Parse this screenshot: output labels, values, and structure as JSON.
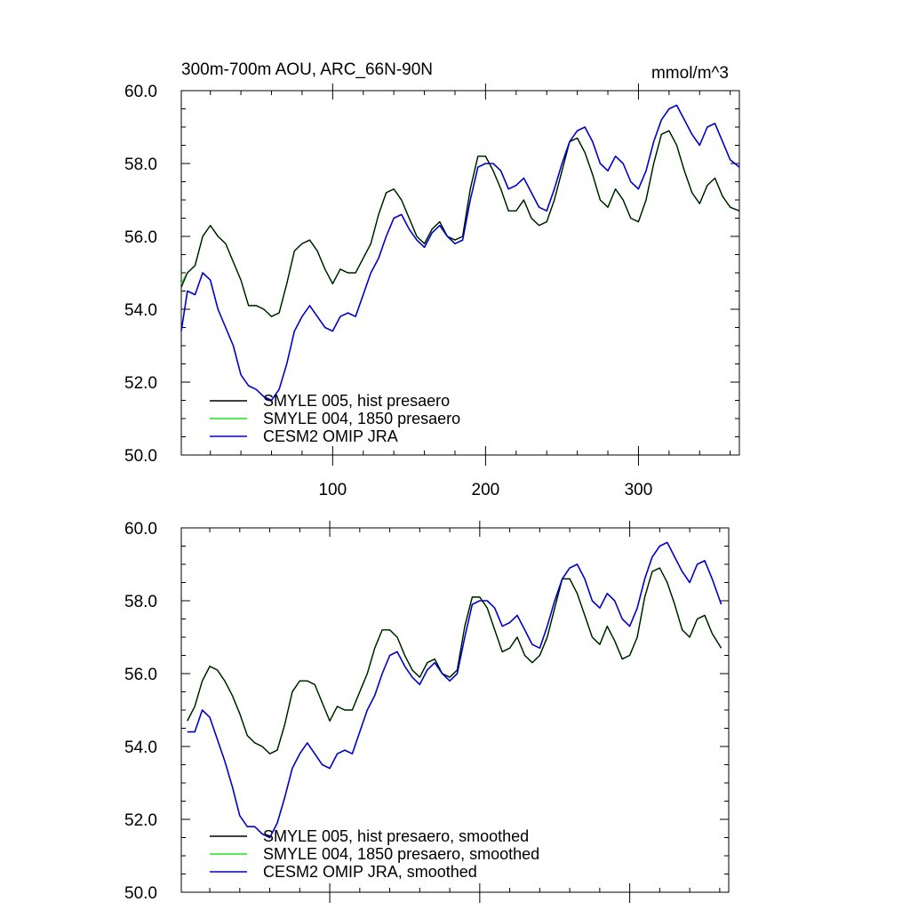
{
  "header": {
    "title": "300m-700m AOU, ARC_66N-90N",
    "units": "mmol/m^3"
  },
  "colors": {
    "smyle005": "#000000",
    "smyle004": "#22dd22",
    "omip": "#0000cc"
  },
  "chart_data": [
    {
      "type": "line",
      "xlim": [
        1,
        366
      ],
      "ylim": [
        50.0,
        60.0
      ],
      "x_ticks": [
        100,
        200,
        300
      ],
      "x_tick_labels": [
        "100",
        "200",
        "300"
      ],
      "y_ticks": [
        50,
        52,
        54,
        56,
        58,
        60
      ],
      "y_tick_labels": [
        "50.0",
        "52.0",
        "54.0",
        "56.0",
        "58.0",
        "60.0"
      ],
      "legend_placement": "bottom-left",
      "series": [
        {
          "name": "SMYLE 005, hist presaero",
          "color": "#000000",
          "x": [
            1,
            5,
            10,
            15,
            20,
            25,
            30,
            35,
            40,
            45,
            50,
            55,
            60,
            65,
            70,
            75,
            80,
            85,
            90,
            95,
            100,
            105,
            110,
            115,
            120,
            125,
            130,
            135,
            140,
            145,
            150,
            155,
            160,
            165,
            170,
            175,
            180,
            185,
            190,
            195,
            200,
            205,
            210,
            215,
            220,
            225,
            230,
            235,
            240,
            245,
            250,
            255,
            260,
            265,
            270,
            275,
            280,
            285,
            290,
            295,
            300,
            305,
            310,
            315,
            320,
            325,
            330,
            335,
            340,
            345,
            350,
            355,
            360,
            366
          ],
          "y": [
            54.6,
            55.0,
            55.2,
            56.0,
            56.3,
            56.0,
            55.8,
            55.3,
            54.8,
            54.1,
            54.1,
            54.0,
            53.8,
            53.9,
            54.7,
            55.6,
            55.8,
            55.9,
            55.6,
            55.1,
            54.7,
            55.1,
            55.0,
            55.0,
            55.4,
            55.8,
            56.6,
            57.2,
            57.3,
            57.0,
            56.5,
            56.0,
            55.8,
            56.2,
            56.4,
            56.0,
            55.9,
            56.0,
            57.3,
            58.2,
            58.2,
            57.8,
            57.3,
            56.7,
            56.7,
            57.0,
            56.5,
            56.3,
            56.4,
            57.0,
            57.8,
            58.6,
            58.7,
            58.3,
            57.7,
            57.0,
            56.8,
            57.3,
            57.0,
            56.5,
            56.4,
            57.0,
            58.0,
            58.8,
            58.9,
            58.5,
            57.8,
            57.2,
            56.9,
            57.4,
            57.6,
            57.1,
            56.8,
            56.7
          ]
        },
        {
          "name": "SMYLE 004, 1850 presaero",
          "color": "#22dd22",
          "x": [
            1,
            5,
            10,
            15,
            20,
            25,
            30,
            35,
            40,
            45,
            50,
            55,
            60,
            65,
            70,
            75,
            80,
            85,
            90,
            95,
            100,
            105,
            110,
            115,
            120,
            125,
            130,
            135,
            140,
            145,
            150,
            155,
            160,
            165,
            170,
            175,
            180,
            185,
            190,
            195,
            200,
            205,
            210,
            215,
            220,
            225,
            230,
            235,
            240,
            245,
            250,
            255,
            260,
            265,
            270,
            275,
            280,
            285,
            290,
            295,
            300,
            305,
            310,
            315,
            320,
            325,
            330,
            335,
            340,
            345,
            350,
            355,
            360,
            366
          ],
          "y": [
            54.7,
            55.0,
            55.2,
            56.0,
            56.3,
            56.0,
            55.8,
            55.3,
            54.8,
            54.1,
            54.1,
            54.0,
            53.8,
            53.9,
            54.7,
            55.6,
            55.8,
            55.9,
            55.6,
            55.1,
            54.7,
            55.1,
            55.0,
            55.0,
            55.4,
            55.8,
            56.6,
            57.2,
            57.3,
            57.0,
            56.5,
            56.0,
            55.8,
            56.2,
            56.4,
            56.0,
            55.9,
            56.0,
            57.3,
            58.2,
            58.2,
            57.8,
            57.3,
            56.7,
            56.7,
            57.0,
            56.5,
            56.3,
            56.4,
            57.0,
            57.8,
            58.6,
            58.7,
            58.3,
            57.7,
            57.0,
            56.8,
            57.3,
            57.0,
            56.5,
            56.4,
            57.0,
            58.0,
            58.8,
            58.9,
            58.5,
            57.8,
            57.2,
            56.9,
            57.4,
            57.6,
            57.1,
            56.8,
            56.7
          ]
        },
        {
          "name": "CESM2 OMIP JRA",
          "color": "#0000cc",
          "x": [
            1,
            5,
            10,
            15,
            20,
            25,
            30,
            35,
            40,
            45,
            50,
            55,
            60,
            65,
            70,
            75,
            80,
            85,
            90,
            95,
            100,
            105,
            110,
            115,
            120,
            125,
            130,
            135,
            140,
            145,
            150,
            155,
            160,
            165,
            170,
            175,
            180,
            185,
            190,
            195,
            200,
            205,
            210,
            215,
            220,
            225,
            230,
            235,
            240,
            245,
            250,
            255,
            260,
            265,
            270,
            275,
            280,
            285,
            290,
            295,
            300,
            305,
            310,
            315,
            320,
            325,
            330,
            335,
            340,
            345,
            350,
            355,
            360,
            366
          ],
          "y": [
            53.4,
            54.5,
            54.4,
            55.0,
            54.8,
            54.0,
            53.5,
            53.0,
            52.2,
            51.9,
            51.8,
            51.6,
            51.5,
            51.8,
            52.5,
            53.4,
            53.8,
            54.1,
            53.8,
            53.5,
            53.4,
            53.8,
            53.9,
            53.8,
            54.4,
            55.0,
            55.4,
            56.0,
            56.5,
            56.6,
            56.2,
            55.9,
            55.7,
            56.1,
            56.3,
            56.0,
            55.8,
            55.9,
            57.0,
            57.9,
            58.0,
            58.0,
            57.8,
            57.3,
            57.4,
            57.6,
            57.2,
            56.8,
            56.7,
            57.3,
            58.0,
            58.6,
            58.9,
            59.0,
            58.6,
            58.0,
            57.8,
            58.2,
            58.0,
            57.5,
            57.3,
            57.8,
            58.6,
            59.2,
            59.5,
            59.6,
            59.2,
            58.8,
            58.5,
            59.0,
            59.1,
            58.6,
            58.1,
            57.9
          ]
        }
      ],
      "legend": [
        "SMYLE 005, hist presaero",
        "SMYLE 004, 1850 presaero",
        "CESM2 OMIP JRA"
      ]
    },
    {
      "type": "line",
      "xlim": [
        1,
        366
      ],
      "ylim": [
        50.0,
        60.0
      ],
      "x_ticks": [
        100,
        200,
        300
      ],
      "y_ticks": [
        50,
        52,
        54,
        56,
        58,
        60
      ],
      "y_tick_labels": [
        "50.0",
        "52.0",
        "54.0",
        "56.0",
        "58.0",
        "60.0"
      ],
      "legend_placement": "bottom-left",
      "series": [
        {
          "name": "SMYLE 005, hist presaero, smoothed",
          "color": "#000000",
          "x": [
            5,
            10,
            15,
            20,
            25,
            30,
            35,
            40,
            45,
            50,
            55,
            60,
            65,
            70,
            75,
            80,
            85,
            90,
            95,
            100,
            105,
            110,
            115,
            120,
            125,
            130,
            135,
            140,
            145,
            150,
            155,
            160,
            165,
            170,
            175,
            180,
            185,
            190,
            195,
            200,
            205,
            210,
            215,
            220,
            225,
            230,
            235,
            240,
            245,
            250,
            255,
            260,
            265,
            270,
            275,
            280,
            285,
            290,
            295,
            300,
            305,
            310,
            315,
            320,
            325,
            330,
            335,
            340,
            345,
            350,
            355,
            361
          ],
          "y": [
            54.7,
            55.1,
            55.8,
            56.2,
            56.1,
            55.8,
            55.4,
            54.9,
            54.3,
            54.1,
            54.0,
            53.8,
            53.9,
            54.6,
            55.5,
            55.8,
            55.8,
            55.7,
            55.2,
            54.7,
            55.1,
            55.0,
            55.0,
            55.5,
            56.0,
            56.7,
            57.2,
            57.2,
            57.0,
            56.5,
            56.1,
            55.9,
            56.3,
            56.4,
            56.0,
            55.9,
            56.1,
            57.3,
            58.1,
            58.1,
            57.8,
            57.2,
            56.6,
            56.7,
            57.0,
            56.5,
            56.3,
            56.5,
            57.0,
            57.8,
            58.6,
            58.6,
            58.2,
            57.6,
            57.0,
            56.8,
            57.3,
            56.9,
            56.4,
            56.5,
            57.0,
            58.1,
            58.8,
            58.9,
            58.5,
            57.9,
            57.2,
            57.0,
            57.5,
            57.6,
            57.1,
            56.7
          ]
        },
        {
          "name": "SMYLE 004, 1850 presaero, smoothed",
          "color": "#22dd22",
          "x": [
            5,
            10,
            15,
            20,
            25,
            30,
            35,
            40,
            45,
            50,
            55,
            60,
            65,
            70,
            75,
            80,
            85,
            90,
            95,
            100,
            105,
            110,
            115,
            120,
            125,
            130,
            135,
            140,
            145,
            150,
            155,
            160,
            165,
            170,
            175,
            180,
            185,
            190,
            195,
            200,
            205,
            210,
            215,
            220,
            225,
            230,
            235,
            240,
            245,
            250,
            255,
            260,
            265,
            270,
            275,
            280,
            285,
            290,
            295,
            300,
            305,
            310,
            315,
            320,
            325,
            330,
            335,
            340,
            345,
            350,
            355,
            361
          ],
          "y": [
            54.7,
            55.1,
            55.8,
            56.2,
            56.1,
            55.8,
            55.4,
            54.9,
            54.3,
            54.1,
            54.0,
            53.8,
            53.9,
            54.6,
            55.5,
            55.8,
            55.8,
            55.7,
            55.2,
            54.7,
            55.1,
            55.0,
            55.0,
            55.5,
            56.0,
            56.7,
            57.2,
            57.2,
            57.0,
            56.5,
            56.1,
            55.9,
            56.3,
            56.4,
            56.0,
            55.9,
            56.1,
            57.3,
            58.1,
            58.1,
            57.8,
            57.2,
            56.6,
            56.7,
            57.0,
            56.5,
            56.3,
            56.5,
            57.0,
            57.8,
            58.6,
            58.6,
            58.2,
            57.6,
            57.0,
            56.8,
            57.3,
            56.9,
            56.4,
            56.5,
            57.0,
            58.1,
            58.8,
            58.9,
            58.5,
            57.9,
            57.2,
            57.0,
            57.5,
            57.6,
            57.1,
            56.7
          ]
        },
        {
          "name": "CESM2 OMIP JRA, smoothed",
          "color": "#0000cc",
          "x": [
            5,
            10,
            15,
            20,
            25,
            30,
            35,
            40,
            45,
            50,
            55,
            60,
            65,
            70,
            75,
            80,
            85,
            90,
            95,
            100,
            105,
            110,
            115,
            120,
            125,
            130,
            135,
            140,
            145,
            150,
            155,
            160,
            165,
            170,
            175,
            180,
            185,
            190,
            195,
            200,
            205,
            210,
            215,
            220,
            225,
            230,
            235,
            240,
            245,
            250,
            255,
            260,
            265,
            270,
            275,
            280,
            285,
            290,
            295,
            300,
            305,
            310,
            315,
            320,
            325,
            330,
            335,
            340,
            345,
            350,
            355,
            361
          ],
          "y": [
            54.4,
            54.4,
            55.0,
            54.8,
            54.2,
            53.6,
            52.9,
            52.1,
            51.8,
            51.8,
            51.6,
            51.5,
            51.9,
            52.6,
            53.4,
            53.8,
            54.1,
            53.8,
            53.5,
            53.4,
            53.8,
            53.9,
            53.8,
            54.4,
            55.0,
            55.4,
            56.0,
            56.5,
            56.6,
            56.2,
            55.9,
            55.7,
            56.1,
            56.3,
            56.0,
            55.8,
            56.0,
            57.0,
            57.9,
            58.0,
            58.0,
            57.8,
            57.3,
            57.4,
            57.6,
            57.2,
            56.8,
            56.7,
            57.3,
            58.0,
            58.6,
            58.9,
            59.0,
            58.6,
            58.0,
            57.8,
            58.2,
            58.0,
            57.5,
            57.3,
            57.8,
            58.6,
            59.2,
            59.5,
            59.6,
            59.2,
            58.8,
            58.5,
            59.0,
            59.1,
            58.6,
            57.9
          ]
        }
      ],
      "legend": [
        "SMYLE 005, hist presaero, smoothed",
        "SMYLE 004, 1850 presaero, smoothed",
        "CESM2 OMIP JRA, smoothed"
      ]
    }
  ]
}
